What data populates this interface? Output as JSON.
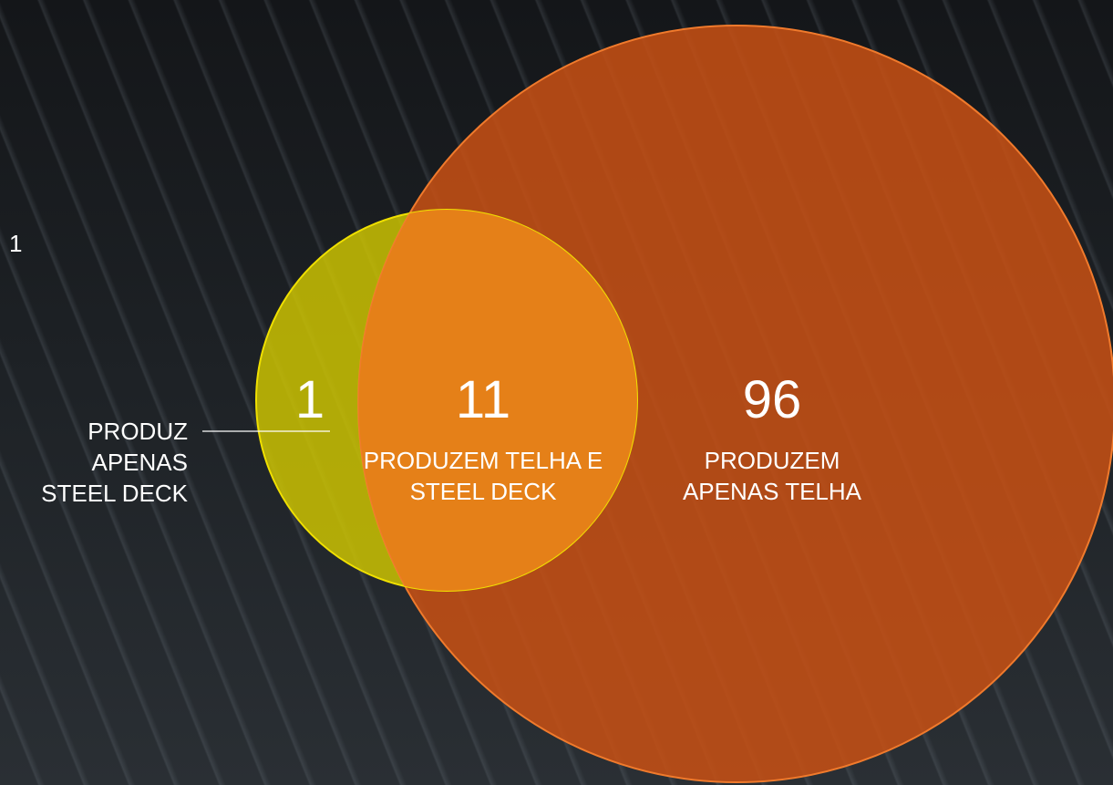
{
  "page_number": "1",
  "regions": [
    {
      "count": 1,
      "label": "PRODUZ APENAS STEEL DECK"
    },
    {
      "count": 11,
      "label": "PRODUZEM TELHA E STEEL DECK"
    },
    {
      "count": 96,
      "label": "PRODUZEM APENAS TELHA"
    }
  ]
}
